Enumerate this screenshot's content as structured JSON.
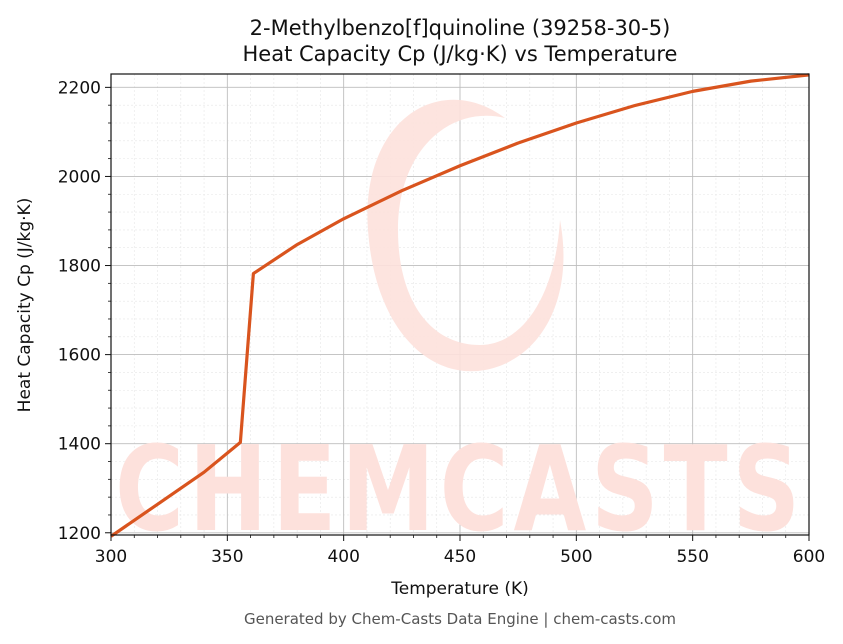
{
  "chart_data": {
    "type": "line",
    "title": "2-Methylbenzo[f]quinoline (39258-30-5)",
    "subtitle": "Heat Capacity Cp (J/kg·K) vs Temperature",
    "xlabel": "Temperature (K)",
    "ylabel": "Heat Capacity Cp (J/kg·K)",
    "xlim": [
      300,
      600
    ],
    "ylim": [
      1195,
      2230
    ],
    "xticks": [
      300,
      350,
      400,
      450,
      500,
      550,
      600
    ],
    "yticks": [
      1200,
      1400,
      1600,
      1800,
      2000,
      2200
    ],
    "grid": true,
    "line_color": "#d9541e",
    "series": [
      {
        "x": [
          300,
          320,
          340,
          355.6,
          361.2,
          380,
          400,
          425,
          450,
          475,
          500,
          525,
          550,
          575,
          600
        ],
        "y": [
          1192,
          1264,
          1336,
          1403,
          1782,
          1847,
          1905,
          1968,
          2024,
          2075,
          2120,
          2159,
          2191,
          2214,
          2228
        ]
      }
    ]
  },
  "watermark": {
    "text": "CHEMCASTS",
    "color": "#fde1dc"
  },
  "footer": "Generated by Chem-Casts Data Engine | chem-casts.com"
}
